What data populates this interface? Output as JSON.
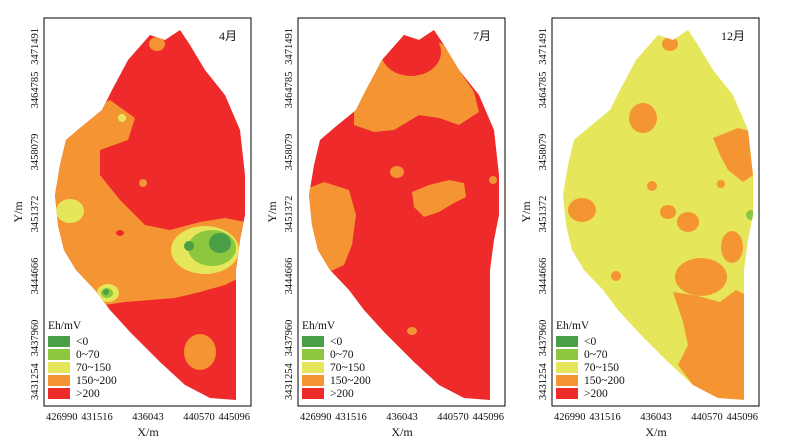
{
  "colors": {
    "lt0": "#4a9e45",
    "c0_70": "#8dc63f",
    "c70_150": "#e6e65a",
    "c150_200": "#f59433",
    "gt200": "#ee2a2a",
    "frame": "#000000"
  },
  "axes": {
    "x_ticks": [
      "426990",
      "431516",
      "436043",
      "440570",
      "445096"
    ],
    "y_ticks": [
      "3471491",
      "3464785",
      "3458079",
      "3451372",
      "3444666",
      "3437960",
      "3431254"
    ],
    "x_label": "X/m",
    "y_label": "Y/m"
  },
  "panels": [
    {
      "month": "4月"
    },
    {
      "month": "7月"
    },
    {
      "month": "12月"
    }
  ],
  "legend": {
    "title": "Eh/mV",
    "items": [
      {
        "label": "<0",
        "color_key": "lt0"
      },
      {
        "label": "0~70",
        "color_key": "c0_70"
      },
      {
        "label": "70~150",
        "color_key": "c70_150"
      },
      {
        "label": "150~200",
        "color_key": "c150_200"
      },
      {
        "label": ">200",
        "color_key": "gt200"
      }
    ]
  }
}
